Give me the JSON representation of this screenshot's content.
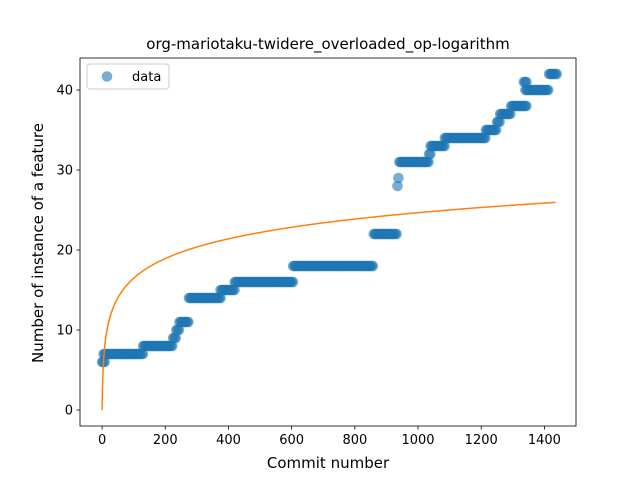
{
  "chart_data": {
    "type": "scatter",
    "title": "org-mariotaku-twidere_overloaded_op-logarithm",
    "xlabel": "Commit number",
    "ylabel": "Number of instance of a feature",
    "xlim": [
      -70,
      1500
    ],
    "ylim": [
      -2,
      44
    ],
    "xticks": [
      0,
      200,
      400,
      600,
      800,
      1000,
      1200,
      1400
    ],
    "yticks": [
      0,
      10,
      20,
      30,
      40
    ],
    "grid": false,
    "legend_position": "top-left",
    "series": [
      {
        "name": "data",
        "kind": "scatter",
        "color": "#1f77b4",
        "step_segments": [
          {
            "x_start": 0,
            "x_end": 10,
            "y": 6
          },
          {
            "x_start": 5,
            "x_end": 130,
            "y": 7
          },
          {
            "x_start": 130,
            "x_end": 225,
            "y": 8
          },
          {
            "x_start": 225,
            "x_end": 235,
            "y": 9
          },
          {
            "x_start": 235,
            "x_end": 245,
            "y": 10
          },
          {
            "x_start": 245,
            "x_end": 275,
            "y": 11
          },
          {
            "x_start": 275,
            "x_end": 375,
            "y": 14
          },
          {
            "x_start": 375,
            "x_end": 420,
            "y": 15
          },
          {
            "x_start": 420,
            "x_end": 605,
            "y": 16
          },
          {
            "x_start": 605,
            "x_end": 860,
            "y": 18
          },
          {
            "x_start": 860,
            "x_end": 935,
            "y": 22
          },
          {
            "x_start": 935,
            "x_end": 938,
            "y": 28
          },
          {
            "x_start": 938,
            "x_end": 941,
            "y": 29
          },
          {
            "x_start": 941,
            "x_end": 1035,
            "y": 31
          },
          {
            "x_start": 1035,
            "x_end": 1040,
            "y": 32
          },
          {
            "x_start": 1040,
            "x_end": 1085,
            "y": 33
          },
          {
            "x_start": 1085,
            "x_end": 1215,
            "y": 34
          },
          {
            "x_start": 1215,
            "x_end": 1250,
            "y": 35
          },
          {
            "x_start": 1250,
            "x_end": 1260,
            "y": 36
          },
          {
            "x_start": 1260,
            "x_end": 1295,
            "y": 37
          },
          {
            "x_start": 1295,
            "x_end": 1345,
            "y": 38
          },
          {
            "x_start": 1335,
            "x_end": 1345,
            "y": 41
          },
          {
            "x_start": 1340,
            "x_end": 1415,
            "y": 40
          },
          {
            "x_start": 1415,
            "x_end": 1440,
            "y": 42
          }
        ]
      },
      {
        "name": "",
        "kind": "line",
        "color": "#ff7f0e",
        "function": "y = 3.57 * ln(x + 1)",
        "x_range": [
          0,
          1435
        ]
      }
    ]
  }
}
